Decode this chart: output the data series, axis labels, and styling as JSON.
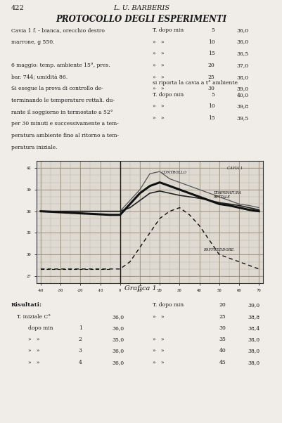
{
  "page_number": "422",
  "header_author": "L. U. BARBERIS",
  "title": "PROTOCOLLO DEGLI ESPERIMENTI",
  "text_left_col": [
    "Cavia 1 f. - bianca, orecchio destro",
    "marrone, g 550.",
    "",
    "6 maggio: temp. ambiente 15°, pres.",
    "bar. 744; umidità 86.",
    "Si esegue la prova di controllo de-",
    "terminando le temperature rettali. du-",
    "rante il soggiorno in termostato a 52°",
    "per 30 minuti e successivamente a tem-",
    "peratura ambiente fino al ritorno a tem-",
    "peratura iniziale."
  ],
  "text_right_col": [
    [
      "T. dopo min",
      "5",
      "36,0"
    ],
    [
      "»   »",
      "10",
      "36,0"
    ],
    [
      "»   »",
      "15",
      "36,5"
    ],
    [
      "»   »",
      "20",
      "37,0"
    ],
    [
      "»   »",
      "25",
      "38,0"
    ],
    [
      "»   »",
      "30",
      "39,0"
    ]
  ],
  "text_right_col2_header": "si riporta la cavia a t° ambiente",
  "text_right_col2": [
    [
      "T. dopo min",
      "5",
      "40,0"
    ],
    [
      "»   »",
      "10",
      "39,8"
    ],
    [
      "»   »",
      "15",
      "39,5"
    ]
  ],
  "graph_caption": "Grafica 1.",
  "results_label": "Risultati:",
  "results_left": [
    [
      "T. iniziale C°",
      "",
      "36,0"
    ],
    [
      "dopo min",
      "1",
      "36,0"
    ],
    [
      "»   »",
      "2",
      "35,0"
    ],
    [
      "»   »",
      "3",
      "36,0"
    ],
    [
      "»   »",
      "4",
      "36,0"
    ]
  ],
  "results_right_header": [
    "T. dopo min",
    "20",
    "39,0"
  ],
  "results_right": [
    [
      "»   »",
      "25",
      "38,8"
    ],
    [
      "",
      "30",
      "38,4"
    ],
    [
      "»   »",
      "35",
      "38,0"
    ],
    [
      "»   »",
      "40",
      "38,0"
    ],
    [
      "»   »",
      "45",
      "38,0"
    ]
  ],
  "curve1_label": "CAVIA 1",
  "curve2_label": "CONTROLLO",
  "curve3_label": "TEMPERATURA\nRETTALE",
  "curve4_label": "RAFFREDDORE",
  "bg_color": "#f0ede8",
  "line_color": "#1a1a1a",
  "grid_color": "#cccccc"
}
